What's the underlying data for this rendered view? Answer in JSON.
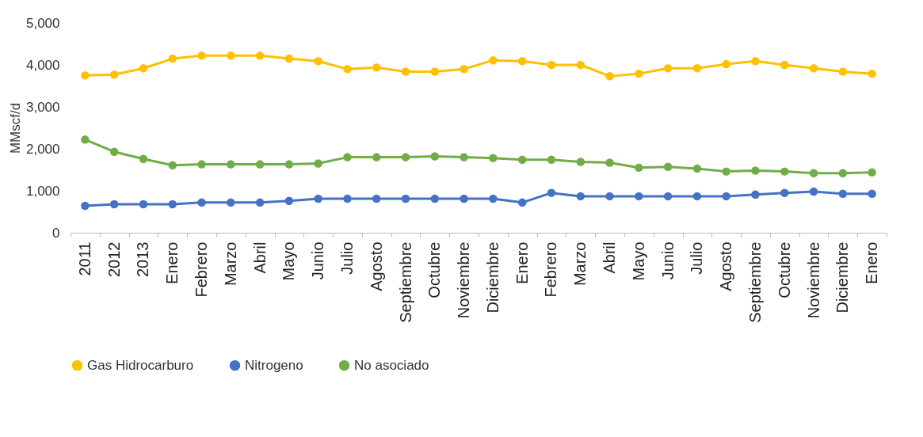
{
  "chart_data": {
    "type": "line",
    "ylabel": "MMscf/d",
    "categories": [
      "2011",
      "2012",
      "2013",
      "Enero",
      "Febrero",
      "Marzo",
      "Abril",
      "Mayo",
      "Junio",
      "Julio",
      "Agosto",
      "Septiembre",
      "Octubre",
      "Noviembre",
      "Diciembre",
      "Enero",
      "Febrero",
      "Marzo",
      "Abril",
      "Mayo",
      "Junio",
      "Julio",
      "Agosto",
      "Septiembre",
      "Octubre",
      "Noviembre",
      "Diciembre",
      "Enero"
    ],
    "series": [
      {
        "name": "Gas Hidrocarburo",
        "color": "#ffc000",
        "values": [
          3750,
          3770,
          3920,
          4150,
          4220,
          4220,
          4220,
          4150,
          4090,
          3900,
          3940,
          3840,
          3840,
          3900,
          4110,
          4090,
          4000,
          4000,
          3730,
          3790,
          3920,
          3920,
          4020,
          4090,
          4000,
          3920,
          3840,
          3790
        ]
      },
      {
        "name": "Nitrogeno",
        "color": "#4472c4",
        "values": [
          640,
          680,
          680,
          680,
          720,
          720,
          720,
          760,
          810,
          810,
          810,
          810,
          810,
          810,
          810,
          720,
          950,
          870,
          870,
          870,
          870,
          870,
          870,
          910,
          950,
          980,
          930,
          930
        ]
      },
      {
        "name": "No asociado",
        "color": "#70ad47",
        "values": [
          2220,
          1930,
          1760,
          1610,
          1630,
          1630,
          1630,
          1630,
          1650,
          1800,
          1800,
          1800,
          1820,
          1800,
          1780,
          1740,
          1740,
          1690,
          1670,
          1550,
          1570,
          1530,
          1460,
          1480,
          1460,
          1420,
          1420,
          1440
        ]
      }
    ],
    "ylim": [
      0,
      5000
    ],
    "yticks": [
      0,
      {
        "value": 1000,
        "label": "1,000"
      },
      {
        "value": 2000,
        "label": "2,000"
      },
      {
        "value": 3000,
        "label": "3,000"
      },
      {
        "value": 4000,
        "label": "4,000"
      },
      {
        "value": 5000,
        "label": "5,000"
      }
    ],
    "grid": false,
    "legend": "bottom",
    "marker": "circle",
    "line_style": "solid"
  }
}
